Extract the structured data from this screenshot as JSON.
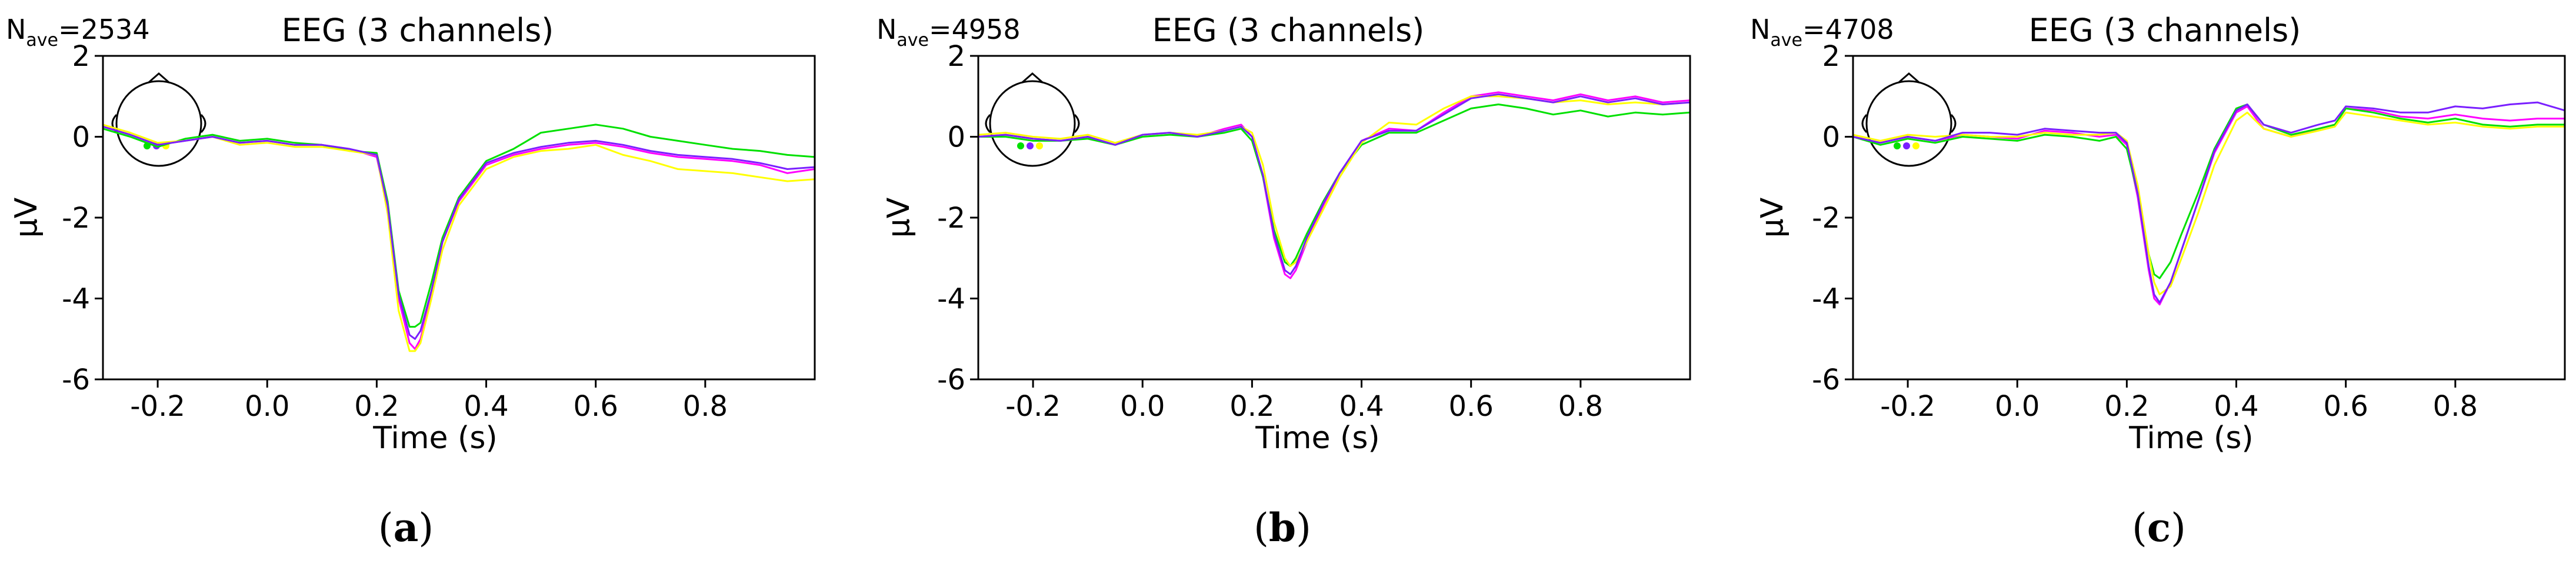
{
  "chart_data": [
    {
      "type": "line",
      "title": "EEG (3 channels)",
      "nave_prefix": "N",
      "nave_sub": "ave",
      "nave_value": "=2534",
      "caption_letter": "a",
      "xlabel": "Time (s)",
      "ylabel": "µV",
      "xlim": [
        -0.3,
        1.0
      ],
      "ylim": [
        -6,
        2
      ],
      "xticks": [
        "-0.2",
        "0.0",
        "0.2",
        "0.4",
        "0.6",
        "0.8"
      ],
      "xtick_values": [
        -0.2,
        0.0,
        0.2,
        0.4,
        0.6,
        0.8
      ],
      "yticks": [
        "2",
        "0",
        "-2",
        "-4",
        "-6"
      ],
      "ytick_values": [
        2,
        0,
        -2,
        -4,
        -6
      ],
      "grid": false,
      "series": [
        {
          "color": "#ff00ff",
          "x": [
            -0.3,
            -0.25,
            -0.2,
            -0.15,
            -0.1,
            -0.05,
            0.0,
            0.05,
            0.1,
            0.15,
            0.2,
            0.22,
            0.24,
            0.26,
            0.27,
            0.28,
            0.3,
            0.32,
            0.35,
            0.4,
            0.45,
            0.5,
            0.55,
            0.6,
            0.65,
            0.7,
            0.75,
            0.8,
            0.85,
            0.9,
            0.95,
            1.0
          ],
          "y": [
            0.25,
            0.05,
            -0.2,
            -0.1,
            0.0,
            -0.15,
            -0.1,
            -0.2,
            -0.2,
            -0.3,
            -0.5,
            -1.8,
            -4.0,
            -5.1,
            -5.25,
            -5.0,
            -3.9,
            -2.6,
            -1.6,
            -0.7,
            -0.45,
            -0.3,
            -0.2,
            -0.15,
            -0.25,
            -0.4,
            -0.5,
            -0.55,
            -0.6,
            -0.7,
            -0.9,
            -0.8
          ]
        },
        {
          "color": "#00e000",
          "x": [
            -0.3,
            -0.25,
            -0.2,
            -0.15,
            -0.1,
            -0.05,
            0.0,
            0.05,
            0.1,
            0.15,
            0.2,
            0.22,
            0.24,
            0.26,
            0.27,
            0.28,
            0.3,
            0.32,
            0.35,
            0.4,
            0.45,
            0.5,
            0.55,
            0.6,
            0.65,
            0.7,
            0.75,
            0.8,
            0.85,
            0.9,
            0.95,
            1.0
          ],
          "y": [
            0.2,
            0.0,
            -0.25,
            -0.05,
            0.05,
            -0.1,
            -0.05,
            -0.15,
            -0.2,
            -0.35,
            -0.4,
            -1.6,
            -3.8,
            -4.7,
            -4.7,
            -4.6,
            -3.6,
            -2.5,
            -1.5,
            -0.6,
            -0.3,
            0.1,
            0.2,
            0.3,
            0.2,
            0.0,
            -0.1,
            -0.2,
            -0.3,
            -0.35,
            -0.45,
            -0.5
          ]
        },
        {
          "color": "#ffff00",
          "x": [
            -0.3,
            -0.25,
            -0.2,
            -0.15,
            -0.1,
            -0.05,
            0.0,
            0.05,
            0.1,
            0.15,
            0.2,
            0.22,
            0.24,
            0.26,
            0.27,
            0.28,
            0.3,
            0.32,
            0.35,
            0.4,
            0.45,
            0.5,
            0.55,
            0.6,
            0.65,
            0.7,
            0.75,
            0.8,
            0.85,
            0.9,
            0.95,
            1.0
          ],
          "y": [
            0.3,
            0.1,
            -0.15,
            -0.1,
            0.0,
            -0.2,
            -0.15,
            -0.25,
            -0.25,
            -0.35,
            -0.45,
            -1.9,
            -4.3,
            -5.3,
            -5.3,
            -5.1,
            -4.0,
            -2.8,
            -1.7,
            -0.8,
            -0.5,
            -0.35,
            -0.3,
            -0.2,
            -0.45,
            -0.6,
            -0.8,
            -0.85,
            -0.9,
            -1.0,
            -1.1,
            -1.05
          ]
        },
        {
          "color": "#7a1fff",
          "x": [
            -0.3,
            -0.25,
            -0.2,
            -0.15,
            -0.1,
            -0.05,
            0.0,
            0.05,
            0.1,
            0.15,
            0.2,
            0.22,
            0.24,
            0.26,
            0.27,
            0.28,
            0.3,
            0.32,
            0.35,
            0.4,
            0.45,
            0.5,
            0.55,
            0.6,
            0.65,
            0.7,
            0.75,
            0.8,
            0.85,
            0.9,
            0.95,
            1.0
          ],
          "y": [
            0.25,
            0.05,
            -0.2,
            -0.1,
            0.0,
            -0.15,
            -0.1,
            -0.2,
            -0.2,
            -0.3,
            -0.45,
            -1.7,
            -3.9,
            -4.9,
            -5.0,
            -4.8,
            -3.8,
            -2.6,
            -1.55,
            -0.65,
            -0.4,
            -0.25,
            -0.15,
            -0.1,
            -0.2,
            -0.35,
            -0.45,
            -0.5,
            -0.55,
            -0.65,
            -0.8,
            -0.75
          ]
        }
      ]
    },
    {
      "type": "line",
      "title": "EEG (3 channels)",
      "nave_prefix": "N",
      "nave_sub": "ave",
      "nave_value": "=4958",
      "caption_letter": "b",
      "xlabel": "Time (s)",
      "ylabel": "µV",
      "xlim": [
        -0.3,
        1.0
      ],
      "ylim": [
        -6,
        2
      ],
      "xticks": [
        "-0.2",
        "0.0",
        "0.2",
        "0.4",
        "0.6",
        "0.8"
      ],
      "xtick_values": [
        -0.2,
        0.0,
        0.2,
        0.4,
        0.6,
        0.8
      ],
      "yticks": [
        "2",
        "0",
        "-2",
        "-4",
        "-6"
      ],
      "ytick_values": [
        2,
        0,
        -2,
        -4,
        -6
      ],
      "grid": false,
      "series": [
        {
          "color": "#ff00ff",
          "x": [
            -0.3,
            -0.25,
            -0.2,
            -0.15,
            -0.1,
            -0.05,
            0.0,
            0.05,
            0.1,
            0.15,
            0.18,
            0.2,
            0.22,
            0.24,
            0.26,
            0.27,
            0.28,
            0.3,
            0.33,
            0.36,
            0.4,
            0.45,
            0.5,
            0.55,
            0.6,
            0.65,
            0.7,
            0.75,
            0.8,
            0.85,
            0.9,
            0.95,
            1.0
          ],
          "y": [
            0.0,
            0.05,
            -0.05,
            -0.1,
            0.0,
            -0.2,
            0.05,
            0.1,
            0.0,
            0.2,
            0.3,
            0.0,
            -1.0,
            -2.5,
            -3.4,
            -3.5,
            -3.3,
            -2.6,
            -1.7,
            -0.9,
            -0.1,
            0.2,
            0.15,
            0.6,
            1.0,
            1.1,
            1.0,
            0.9,
            1.05,
            0.9,
            1.0,
            0.85,
            0.9
          ]
        },
        {
          "color": "#00e000",
          "x": [
            -0.3,
            -0.25,
            -0.2,
            -0.15,
            -0.1,
            -0.05,
            0.0,
            0.05,
            0.1,
            0.15,
            0.18,
            0.2,
            0.22,
            0.24,
            0.26,
            0.27,
            0.28,
            0.3,
            0.33,
            0.36,
            0.4,
            0.45,
            0.5,
            0.55,
            0.6,
            0.65,
            0.7,
            0.75,
            0.8,
            0.85,
            0.9,
            0.95,
            1.0
          ],
          "y": [
            0.0,
            0.0,
            -0.1,
            -0.1,
            -0.05,
            -0.2,
            0.0,
            0.05,
            0.0,
            0.1,
            0.2,
            -0.1,
            -1.0,
            -2.3,
            -3.1,
            -3.2,
            -3.0,
            -2.4,
            -1.6,
            -0.9,
            -0.2,
            0.1,
            0.1,
            0.4,
            0.7,
            0.8,
            0.7,
            0.55,
            0.65,
            0.5,
            0.6,
            0.55,
            0.6
          ]
        },
        {
          "color": "#ffff00",
          "x": [
            -0.3,
            -0.25,
            -0.2,
            -0.15,
            -0.1,
            -0.05,
            0.0,
            0.05,
            0.1,
            0.15,
            0.18,
            0.2,
            0.22,
            0.24,
            0.26,
            0.27,
            0.28,
            0.3,
            0.33,
            0.36,
            0.4,
            0.45,
            0.5,
            0.55,
            0.6,
            0.65,
            0.7,
            0.75,
            0.8,
            0.85,
            0.9,
            0.95,
            1.0
          ],
          "y": [
            0.05,
            0.1,
            0.0,
            -0.05,
            0.05,
            -0.15,
            0.05,
            0.1,
            0.05,
            0.15,
            0.25,
            0.1,
            -0.7,
            -2.1,
            -3.0,
            -3.2,
            -3.1,
            -2.6,
            -1.8,
            -1.0,
            -0.15,
            0.35,
            0.3,
            0.7,
            1.0,
            1.0,
            0.95,
            0.85,
            0.9,
            0.8,
            0.85,
            0.8,
            0.85
          ]
        },
        {
          "color": "#7a1fff",
          "x": [
            -0.3,
            -0.25,
            -0.2,
            -0.15,
            -0.1,
            -0.05,
            0.0,
            0.05,
            0.1,
            0.15,
            0.18,
            0.2,
            0.22,
            0.24,
            0.26,
            0.27,
            0.28,
            0.3,
            0.33,
            0.36,
            0.4,
            0.45,
            0.5,
            0.55,
            0.6,
            0.65,
            0.7,
            0.75,
            0.8,
            0.85,
            0.9,
            0.95,
            1.0
          ],
          "y": [
            0.0,
            0.05,
            -0.05,
            -0.1,
            0.0,
            -0.2,
            0.05,
            0.1,
            0.0,
            0.15,
            0.25,
            0.0,
            -0.95,
            -2.4,
            -3.3,
            -3.4,
            -3.2,
            -2.5,
            -1.65,
            -0.9,
            -0.1,
            0.15,
            0.15,
            0.55,
            0.95,
            1.05,
            0.95,
            0.85,
            1.0,
            0.85,
            0.95,
            0.8,
            0.85
          ]
        }
      ]
    },
    {
      "type": "line",
      "title": "EEG (3 channels)",
      "nave_prefix": "N",
      "nave_sub": "ave",
      "nave_value": "=4708",
      "caption_letter": "c",
      "xlabel": "Time (s)",
      "ylabel": "µV",
      "xlim": [
        -0.3,
        1.0
      ],
      "ylim": [
        -6,
        2
      ],
      "xticks": [
        "-0.2",
        "0.0",
        "0.2",
        "0.4",
        "0.6",
        "0.8"
      ],
      "xtick_values": [
        -0.2,
        0.0,
        0.2,
        0.4,
        0.6,
        0.8
      ],
      "yticks": [
        "2",
        "0",
        "-2",
        "-4",
        "-6"
      ],
      "ytick_values": [
        2,
        0,
        -2,
        -4,
        -6
      ],
      "grid": false,
      "series": [
        {
          "color": "#ff00ff",
          "x": [
            -0.3,
            -0.25,
            -0.2,
            -0.15,
            -0.1,
            -0.05,
            0.0,
            0.05,
            0.1,
            0.15,
            0.18,
            0.2,
            0.22,
            0.24,
            0.25,
            0.26,
            0.28,
            0.3,
            0.33,
            0.36,
            0.4,
            0.42,
            0.45,
            0.5,
            0.55,
            0.58,
            0.6,
            0.65,
            0.7,
            0.75,
            0.8,
            0.85,
            0.9,
            0.95,
            1.0
          ],
          "y": [
            0.0,
            -0.15,
            0.0,
            -0.1,
            0.05,
            0.0,
            -0.05,
            0.15,
            0.1,
            0.0,
            0.05,
            -0.2,
            -1.5,
            -3.3,
            -4.0,
            -4.15,
            -3.6,
            -2.8,
            -1.6,
            -0.4,
            0.6,
            0.75,
            0.2,
            0.0,
            0.2,
            0.3,
            0.7,
            0.65,
            0.5,
            0.45,
            0.55,
            0.45,
            0.4,
            0.45,
            0.45
          ]
        },
        {
          "color": "#00e000",
          "x": [
            -0.3,
            -0.25,
            -0.2,
            -0.15,
            -0.1,
            -0.05,
            0.0,
            0.05,
            0.1,
            0.15,
            0.18,
            0.2,
            0.22,
            0.24,
            0.25,
            0.26,
            0.28,
            0.3,
            0.33,
            0.36,
            0.4,
            0.42,
            0.45,
            0.5,
            0.55,
            0.58,
            0.6,
            0.65,
            0.7,
            0.75,
            0.8,
            0.85,
            0.9,
            0.95,
            1.0
          ],
          "y": [
            0.0,
            -0.2,
            -0.05,
            -0.15,
            0.0,
            -0.05,
            -0.1,
            0.05,
            0.0,
            -0.1,
            0.0,
            -0.3,
            -1.4,
            -2.9,
            -3.4,
            -3.5,
            -3.1,
            -2.4,
            -1.4,
            -0.3,
            0.7,
            0.8,
            0.3,
            0.05,
            0.2,
            0.3,
            0.7,
            0.6,
            0.45,
            0.35,
            0.45,
            0.3,
            0.25,
            0.3,
            0.3
          ]
        },
        {
          "color": "#ffff00",
          "x": [
            -0.3,
            -0.25,
            -0.2,
            -0.15,
            -0.1,
            -0.05,
            0.0,
            0.05,
            0.1,
            0.15,
            0.18,
            0.2,
            0.22,
            0.24,
            0.25,
            0.26,
            0.28,
            0.3,
            0.33,
            0.36,
            0.4,
            0.42,
            0.45,
            0.5,
            0.55,
            0.58,
            0.6,
            0.65,
            0.7,
            0.75,
            0.8,
            0.85,
            0.9,
            0.95,
            1.0
          ],
          "y": [
            0.05,
            -0.1,
            0.05,
            0.0,
            0.05,
            0.0,
            0.0,
            0.1,
            0.05,
            0.05,
            0.1,
            -0.1,
            -1.2,
            -2.9,
            -3.6,
            -3.9,
            -3.7,
            -3.0,
            -1.9,
            -0.7,
            0.4,
            0.6,
            0.2,
            0.0,
            0.15,
            0.25,
            0.6,
            0.5,
            0.4,
            0.3,
            0.35,
            0.25,
            0.2,
            0.25,
            0.25
          ]
        },
        {
          "color": "#7a1fff",
          "x": [
            -0.3,
            -0.25,
            -0.2,
            -0.15,
            -0.1,
            -0.05,
            0.0,
            0.05,
            0.1,
            0.15,
            0.18,
            0.2,
            0.22,
            0.24,
            0.25,
            0.26,
            0.28,
            0.3,
            0.33,
            0.36,
            0.4,
            0.42,
            0.45,
            0.5,
            0.55,
            0.58,
            0.6,
            0.65,
            0.7,
            0.75,
            0.8,
            0.85,
            0.9,
            0.95,
            1.0
          ],
          "y": [
            0.0,
            -0.15,
            0.0,
            -0.1,
            0.1,
            0.1,
            0.05,
            0.2,
            0.15,
            0.1,
            0.1,
            -0.15,
            -1.4,
            -3.2,
            -3.9,
            -4.1,
            -3.6,
            -2.8,
            -1.6,
            -0.35,
            0.65,
            0.8,
            0.3,
            0.1,
            0.3,
            0.4,
            0.75,
            0.7,
            0.6,
            0.6,
            0.75,
            0.7,
            0.8,
            0.85,
            0.65
          ]
        }
      ]
    }
  ]
}
